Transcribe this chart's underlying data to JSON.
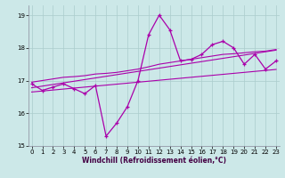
{
  "xlabel": "Windchill (Refroidissement éolien,°C)",
  "bg_color": "#cce8e8",
  "grid_color": "#aacccc",
  "line_color": "#aa00aa",
  "x": [
    0,
    1,
    2,
    3,
    4,
    5,
    6,
    7,
    8,
    9,
    10,
    11,
    12,
    13,
    14,
    15,
    16,
    17,
    18,
    19,
    20,
    21,
    22,
    23
  ],
  "y_main": [
    16.9,
    16.7,
    16.8,
    16.9,
    16.75,
    16.6,
    16.85,
    15.3,
    15.7,
    16.2,
    17.0,
    18.4,
    19.0,
    18.55,
    17.6,
    17.65,
    17.8,
    18.1,
    18.2,
    18.0,
    17.5,
    17.8,
    17.35,
    17.6
  ],
  "y_reg1": [
    16.95,
    17.0,
    17.05,
    17.1,
    17.12,
    17.15,
    17.2,
    17.22,
    17.25,
    17.3,
    17.35,
    17.42,
    17.5,
    17.55,
    17.6,
    17.65,
    17.7,
    17.75,
    17.8,
    17.82,
    17.85,
    17.88,
    17.9,
    17.95
  ],
  "y_reg2": [
    16.78,
    16.83,
    16.88,
    16.93,
    16.98,
    17.03,
    17.08,
    17.13,
    17.18,
    17.23,
    17.28,
    17.33,
    17.38,
    17.43,
    17.48,
    17.53,
    17.58,
    17.63,
    17.68,
    17.73,
    17.78,
    17.83,
    17.88,
    17.93
  ],
  "y_reg3": [
    16.65,
    16.68,
    16.71,
    16.74,
    16.77,
    16.8,
    16.83,
    16.86,
    16.89,
    16.92,
    16.95,
    16.98,
    17.01,
    17.04,
    17.07,
    17.1,
    17.13,
    17.16,
    17.19,
    17.22,
    17.25,
    17.28,
    17.31,
    17.34
  ],
  "ylim": [
    15.0,
    19.3
  ],
  "yticks": [
    15,
    16,
    17,
    18,
    19
  ],
  "xticks": [
    0,
    1,
    2,
    3,
    4,
    5,
    6,
    7,
    8,
    9,
    10,
    11,
    12,
    13,
    14,
    15,
    16,
    17,
    18,
    19,
    20,
    21,
    22,
    23
  ],
  "xlim": [
    -0.3,
    23.3
  ]
}
